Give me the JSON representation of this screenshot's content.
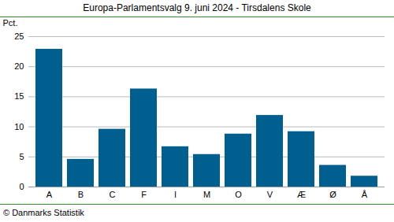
{
  "chart_data": {
    "type": "bar",
    "title": "Europa-Parlamentsvalg 9. juni 2024 - Tirsdalens Skole",
    "y_label": "Pct.",
    "caption": "© Danmarks Statistik",
    "categories": [
      "A",
      "B",
      "C",
      "F",
      "I",
      "M",
      "O",
      "V",
      "Æ",
      "Ø",
      "Å"
    ],
    "values": [
      22.9,
      4.6,
      9.6,
      16.3,
      6.7,
      5.4,
      8.8,
      11.9,
      9.2,
      3.6,
      1.8
    ],
    "color": "#005f8f",
    "ylim": [
      0,
      25
    ],
    "yticks": [
      0,
      5,
      10,
      15,
      20,
      25
    ],
    "grid": true
  }
}
